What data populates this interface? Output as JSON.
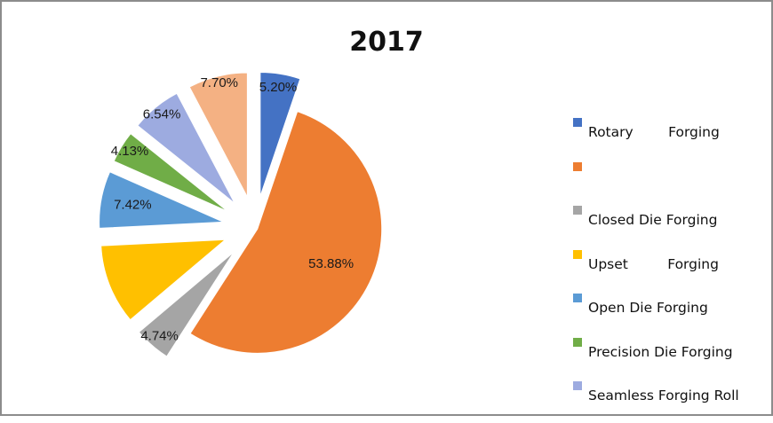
{
  "chart_data": {
    "type": "pie",
    "title": "2017",
    "legend_position": "right",
    "slices": [
      {
        "name": "Rotary        Forging",
        "value": 5.2,
        "label": "5.20%",
        "color": "#4472c4"
      },
      {
        "name": "",
        "value": 53.88,
        "label": "53.88%",
        "color": "#ed7d31"
      },
      {
        "name": "Closed Die Forging",
        "value": 4.74,
        "label": "4.74%",
        "color": "#a5a5a5"
      },
      {
        "name": "Upset         Forging",
        "value": 10.39,
        "label": "",
        "color": "#ffc000"
      },
      {
        "name": "Open Die Forging",
        "value": 7.42,
        "label": "7.42%",
        "color": "#5b9bd5"
      },
      {
        "name": "Precision Die Forging",
        "value": 4.13,
        "label": "4.13%",
        "color": "#70ad47"
      },
      {
        "name": "Seamless Forging Roll",
        "value": 6.54,
        "label": "6.54%",
        "color": "#9dabe0"
      },
      {
        "name": "",
        "value": 7.7,
        "label": "7.70%",
        "color": "#f4b183"
      }
    ]
  }
}
